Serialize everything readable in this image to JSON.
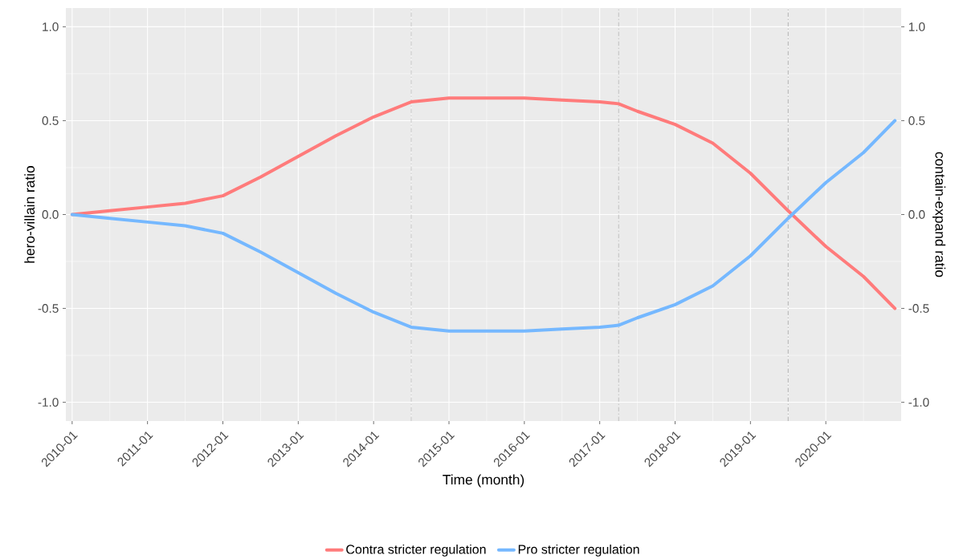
{
  "chart_data": {
    "type": "line",
    "xlabel": "Time (month)",
    "ylabel": "hero-villain ratio",
    "y2label": "contain-expand ratio",
    "x": [
      "2010-01",
      "2010-07",
      "2011-01",
      "2011-07",
      "2012-01",
      "2012-07",
      "2013-01",
      "2013-07",
      "2014-01",
      "2014-07",
      "2015-01",
      "2015-07",
      "2016-01",
      "2016-07",
      "2017-01",
      "2017-04",
      "2017-07",
      "2018-01",
      "2018-07",
      "2019-01",
      "2019-07",
      "2020-01",
      "2020-07",
      "2020-12"
    ],
    "series": [
      {
        "name": "Contra stricter regulation",
        "color": "#ff7b7b",
        "values": [
          0,
          0.02,
          0.04,
          0.06,
          0.1,
          0.2,
          0.31,
          0.42,
          0.52,
          0.6,
          0.62,
          0.62,
          0.62,
          0.61,
          0.6,
          0.59,
          0.55,
          0.48,
          0.38,
          0.22,
          0.02,
          -0.17,
          -0.33,
          -0.5
        ]
      },
      {
        "name": "Pro stricter regulation",
        "color": "#75b8ff",
        "values": [
          0,
          -0.02,
          -0.04,
          -0.06,
          -0.1,
          -0.2,
          -0.31,
          -0.42,
          -0.52,
          -0.6,
          -0.62,
          -0.62,
          -0.62,
          -0.61,
          -0.6,
          -0.59,
          -0.55,
          -0.48,
          -0.38,
          -0.22,
          -0.02,
          0.17,
          0.33,
          0.5
        ]
      }
    ],
    "xlim": [
      "2009-12",
      "2021-01"
    ],
    "xticks": [
      "2010-01",
      "2011-01",
      "2012-01",
      "2013-01",
      "2014-01",
      "2015-01",
      "2016-01",
      "2017-01",
      "2018-01",
      "2019-01",
      "2020-01"
    ],
    "ylim": [
      -1.1,
      1.1
    ],
    "yticks": [
      {
        "value": -1,
        "label": "-1.0"
      },
      -0.5,
      {
        "value": 0,
        "label": "0.0"
      },
      0.5,
      {
        "value": 1,
        "label": "1.0"
      }
    ],
    "y2lim": [
      -1.1,
      1.1
    ],
    "y2ticks": [
      {
        "value": -1,
        "label": "-1.0"
      },
      -0.5,
      {
        "value": 0,
        "label": "0.0"
      },
      0.5,
      {
        "value": 1,
        "label": "1.0"
      }
    ],
    "ref_lines": [
      {
        "axis": "x",
        "value": "2014-07",
        "color": "#a0a0a0",
        "line_style": "dashdot"
      },
      {
        "axis": "x",
        "value": "2017-04",
        "color": "#a0a0a0",
        "line_style": "dashdot"
      },
      {
        "axis": "x",
        "value": "2019-07",
        "color": "#a0a0a0",
        "line_style": "dashdot"
      }
    ],
    "grid": true,
    "legend": "bottom",
    "marker": "none",
    "line_style": "solid"
  }
}
